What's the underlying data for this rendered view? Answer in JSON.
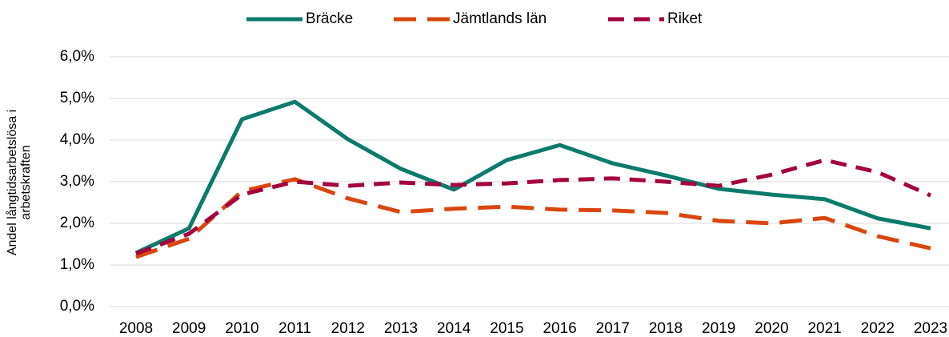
{
  "chart_data": {
    "type": "line",
    "ylabel": [
      "Andel långtidsarbetslösa i",
      "arbetskraften"
    ],
    "categories": [
      "2008",
      "2009",
      "2010",
      "2011",
      "2012",
      "2013",
      "2014",
      "2015",
      "2016",
      "2017",
      "2018",
      "2019",
      "2020",
      "2021",
      "2022",
      "2023"
    ],
    "series": [
      {
        "name": "Bräcke",
        "color": "#0b7b6a",
        "style": "solid",
        "values": [
          1.29,
          1.88,
          4.5,
          4.92,
          4.02,
          3.31,
          2.81,
          3.52,
          3.88,
          3.44,
          3.15,
          2.83,
          2.69,
          2.58,
          2.12,
          1.88
        ]
      },
      {
        "name": "Jämtlands län",
        "color": "#d9470f",
        "style": "dashed",
        "values": [
          1.19,
          1.63,
          2.77,
          3.06,
          2.6,
          2.27,
          2.35,
          2.4,
          2.33,
          2.31,
          2.25,
          2.06,
          2.0,
          2.13,
          1.69,
          1.4
        ]
      },
      {
        "name": "Riket",
        "color": "#a4003e",
        "style": "dashed",
        "values": [
          1.27,
          1.75,
          2.69,
          3.0,
          2.9,
          2.98,
          2.92,
          2.96,
          3.04,
          3.08,
          3.0,
          2.9,
          3.17,
          3.52,
          3.23,
          2.67
        ]
      }
    ],
    "ylim": [
      0,
      6
    ],
    "yticks": [
      {
        "value": 0,
        "label": "0,0%"
      },
      {
        "value": 1,
        "label": "1,0%"
      },
      {
        "value": 2,
        "label": "2,0%"
      },
      {
        "value": 3,
        "label": "3,0%"
      },
      {
        "value": 4,
        "label": "4,0%"
      },
      {
        "value": 5,
        "label": "5,0%"
      },
      {
        "value": 6,
        "label": "6,0%"
      }
    ],
    "grid": true,
    "legend": "top"
  }
}
